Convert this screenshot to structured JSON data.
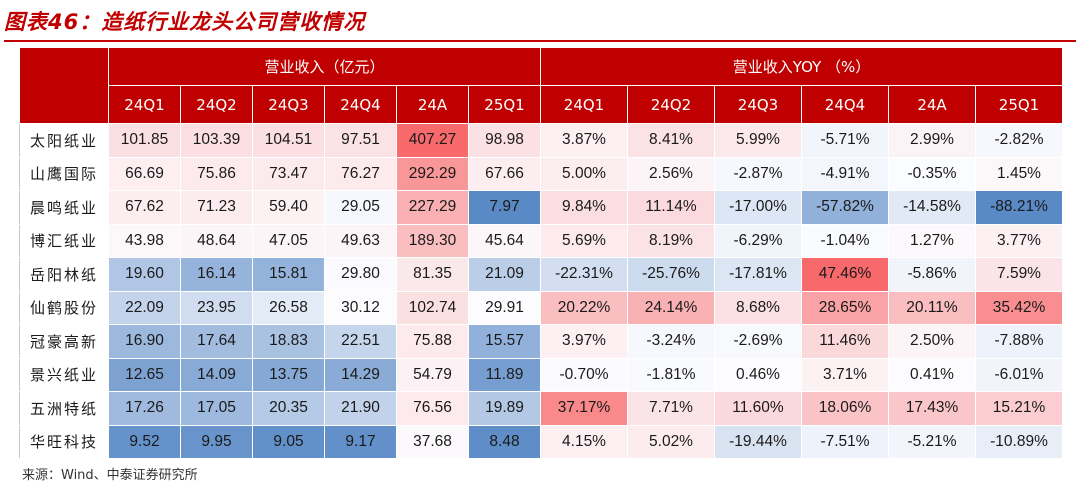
{
  "title": "图表46：造纸行业龙头公司营收情况",
  "group_headers": {
    "revenue": "营业收入（亿元）",
    "yoy": "营业收入YOY （%）"
  },
  "period_headers": [
    "24Q1",
    "24Q2",
    "24Q3",
    "24Q4",
    "24A",
    "25Q1"
  ],
  "rows": [
    {
      "company": "太阳纸业",
      "revenue": [
        "101.85",
        "103.39",
        "104.51",
        "97.51",
        "407.27",
        "98.98"
      ],
      "yoy": [
        "3.87%",
        "8.41%",
        "5.99%",
        "-5.71%",
        "2.99%",
        "-2.82%"
      ]
    },
    {
      "company": "山鹰国际",
      "revenue": [
        "66.69",
        "75.86",
        "73.47",
        "76.27",
        "292.29",
        "67.66"
      ],
      "yoy": [
        "5.00%",
        "2.56%",
        "-2.87%",
        "-4.91%",
        "-0.35%",
        "1.45%"
      ]
    },
    {
      "company": "晨鸣纸业",
      "revenue": [
        "67.62",
        "71.23",
        "59.40",
        "29.05",
        "227.29",
        "7.97"
      ],
      "yoy": [
        "9.84%",
        "11.14%",
        "-17.00%",
        "-57.82%",
        "-14.58%",
        "-88.21%"
      ]
    },
    {
      "company": "博汇纸业",
      "revenue": [
        "43.98",
        "48.64",
        "47.05",
        "49.63",
        "189.30",
        "45.64"
      ],
      "yoy": [
        "5.69%",
        "8.19%",
        "-6.29%",
        "-1.04%",
        "1.27%",
        "3.77%"
      ]
    },
    {
      "company": "岳阳林纸",
      "revenue": [
        "19.60",
        "16.14",
        "15.81",
        "29.80",
        "81.35",
        "21.09"
      ],
      "yoy": [
        "-22.31%",
        "-25.76%",
        "-17.81%",
        "47.46%",
        "-5.86%",
        "7.59%"
      ]
    },
    {
      "company": "仙鹤股份",
      "revenue": [
        "22.09",
        "23.95",
        "26.58",
        "30.12",
        "102.74",
        "29.91"
      ],
      "yoy": [
        "20.22%",
        "24.14%",
        "8.68%",
        "28.65%",
        "20.11%",
        "35.42%"
      ]
    },
    {
      "company": "冠豪高新",
      "revenue": [
        "16.90",
        "17.64",
        "18.83",
        "22.51",
        "75.88",
        "15.57"
      ],
      "yoy": [
        "3.97%",
        "-3.24%",
        "-2.69%",
        "11.46%",
        "2.50%",
        "-7.88%"
      ]
    },
    {
      "company": "景兴纸业",
      "revenue": [
        "12.65",
        "14.09",
        "13.75",
        "14.29",
        "54.79",
        "11.89"
      ],
      "yoy": [
        "-0.70%",
        "-1.81%",
        "0.46%",
        "3.71%",
        "0.41%",
        "-6.01%"
      ]
    },
    {
      "company": "五洲特纸",
      "revenue": [
        "17.26",
        "17.05",
        "20.35",
        "21.90",
        "76.56",
        "19.89"
      ],
      "yoy": [
        "37.17%",
        "7.71%",
        "11.60%",
        "18.06%",
        "17.43%",
        "15.21%"
      ]
    },
    {
      "company": "华旺科技",
      "revenue": [
        "9.52",
        "9.95",
        "9.05",
        "9.17",
        "37.68",
        "8.48"
      ],
      "yoy": [
        "4.15%",
        "5.02%",
        "-19.44%",
        "-7.51%",
        "-5.21%",
        "-10.89%"
      ]
    }
  ],
  "source": "来源：Wind、中泰证券研究所",
  "colors": {
    "header_red": "#c00000",
    "scale_high_red": "#f8696b",
    "scale_mid_white": "#fcfcff",
    "scale_low_blue": "#5a8ac6"
  }
}
